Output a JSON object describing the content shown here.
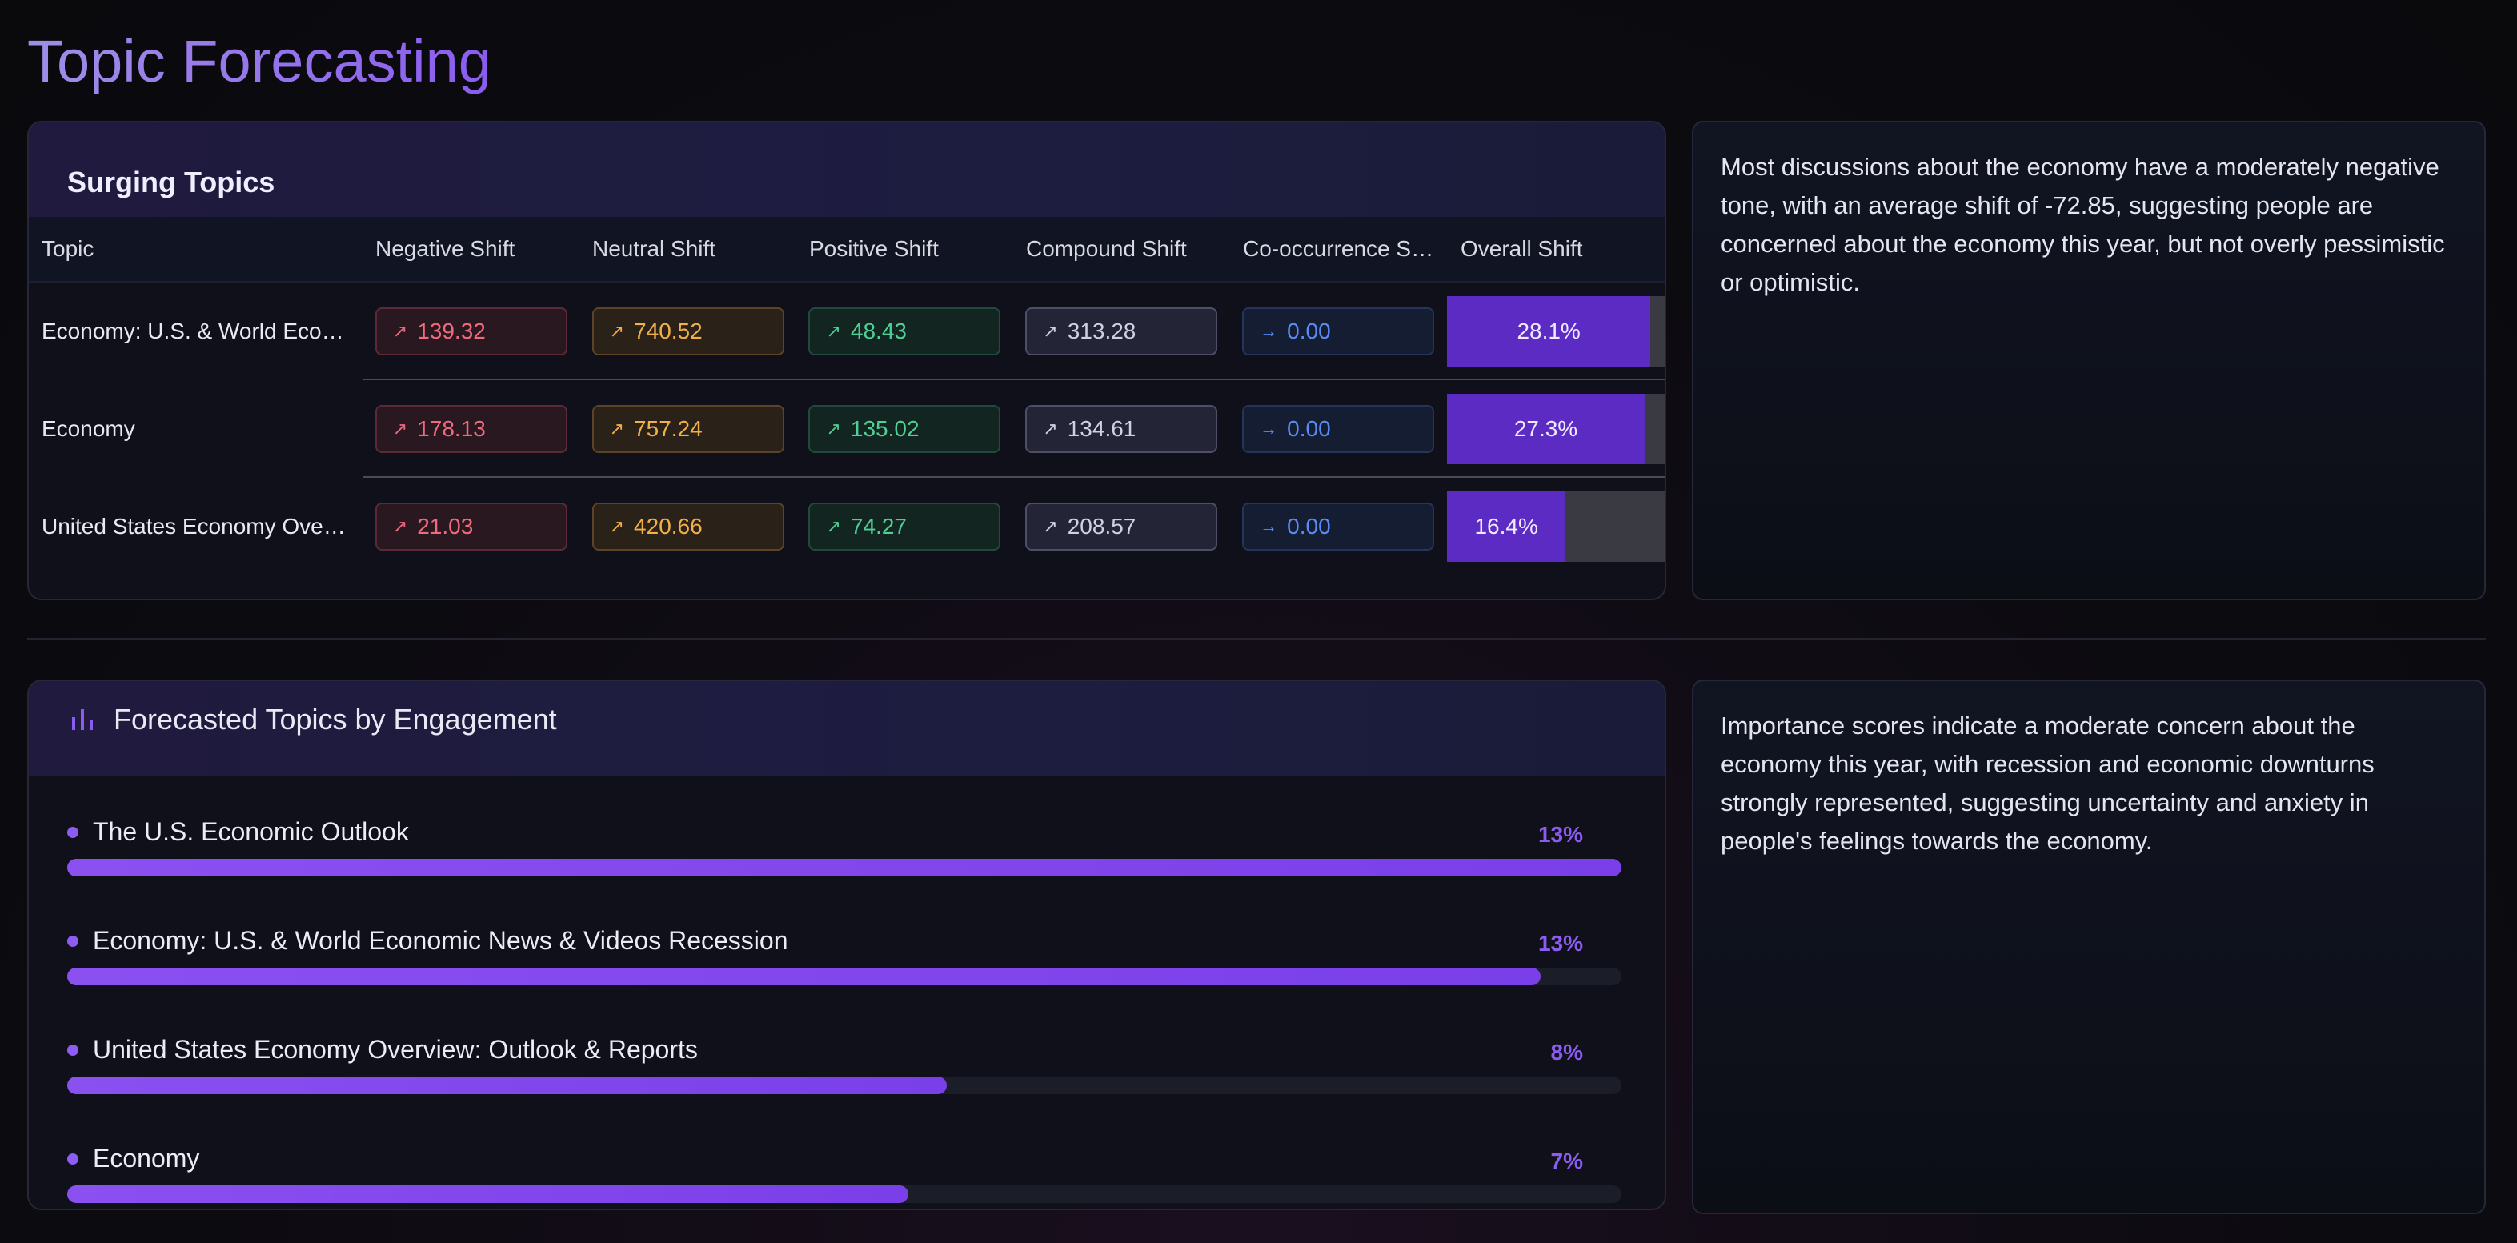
{
  "page": {
    "title": "Topic Forecasting"
  },
  "surging": {
    "title": "Surging Topics",
    "columns": [
      "Topic",
      "Negative Shift",
      "Neutral Shift",
      "Positive Shift",
      "Compound Shift",
      "Co-occurrence S…",
      "Overall Shift"
    ],
    "rows": [
      {
        "topic": "Economy: U.S. & World Eco…",
        "neg": "139.32",
        "neu": "740.52",
        "pos": "48.43",
        "cmp": "313.28",
        "co": "0.00",
        "overall_label": "28.1%",
        "overall": 0.281
      },
      {
        "topic": "Economy",
        "neg": "178.13",
        "neu": "757.24",
        "pos": "135.02",
        "cmp": "134.61",
        "co": "0.00",
        "overall_label": "27.3%",
        "overall": 0.273
      },
      {
        "topic": "United States Economy Ove…",
        "neg": "21.03",
        "neu": "420.66",
        "pos": "74.27",
        "cmp": "208.57",
        "co": "0.00",
        "overall_label": "16.4%",
        "overall": 0.164
      }
    ],
    "icons": {
      "up": "↗",
      "right": "→"
    }
  },
  "insight1": "Most discussions about the economy have a moderately negative tone, with an average shift of -72.85, suggesting people are concerned about the economy this year, but not overly pessimistic or optimistic.",
  "forecast": {
    "title": "Forecasted Topics by Engagement",
    "items": [
      {
        "label": "The U.S. Economic Outlook",
        "pct": "13%",
        "fill": 1.0
      },
      {
        "label": "Economy: U.S. & World Economic News & Videos Recession",
        "pct": "13%",
        "fill": 0.948
      },
      {
        "label": "United States Economy Overview: Outlook & Reports",
        "pct": "8%",
        "fill": 0.566
      },
      {
        "label": "Economy",
        "pct": "7%",
        "fill": 0.541
      }
    ]
  },
  "insight2": "Importance scores indicate a moderate concern about the economy this year, with recession and economic downturns strongly represented, suggesting uncertainty and anxiety in people's feelings towards the economy.",
  "colors": {
    "accent": "#8b5cf0",
    "bar": "#5b2bc4"
  }
}
